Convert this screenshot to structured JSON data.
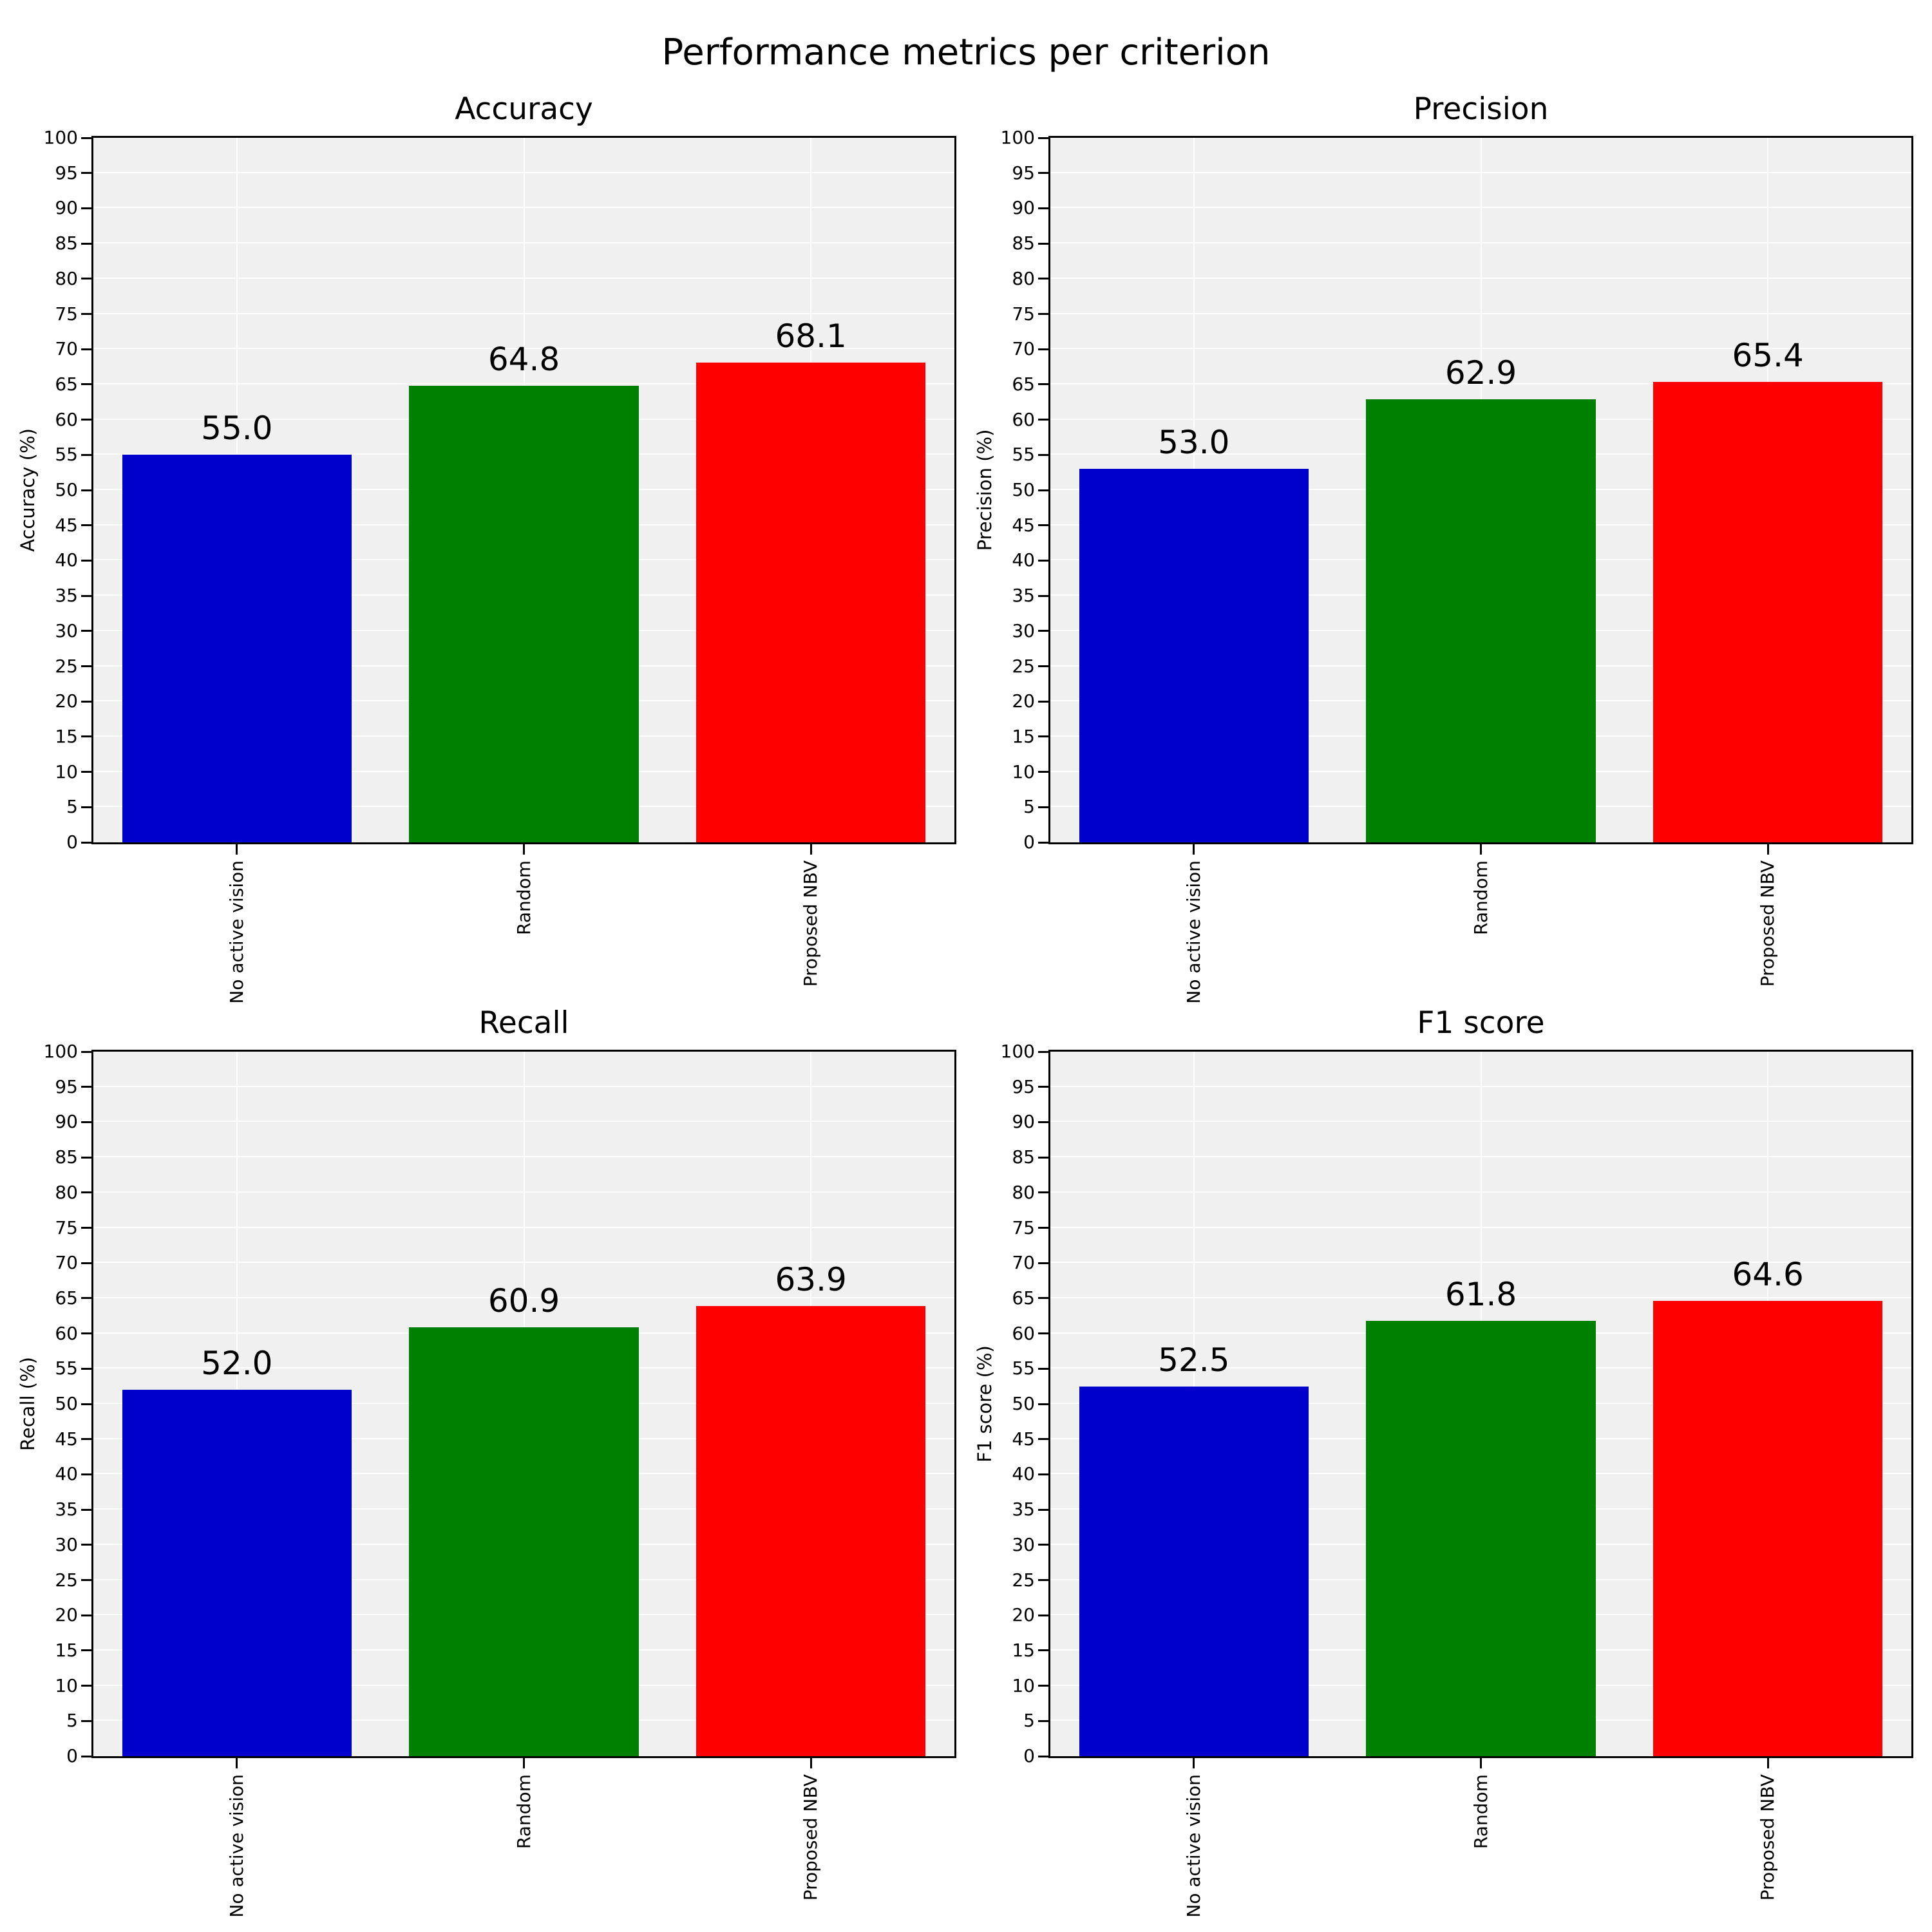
{
  "figure": {
    "suptitle": "Performance metrics per criterion",
    "background": "#ffffff",
    "plot_background": "#f0f0f0",
    "grid_color": "#ffffff",
    "spine_color": "#000000"
  },
  "chart_data": [
    {
      "type": "bar",
      "title": "Accuracy",
      "ylabel": "Accuracy (%)",
      "categories": [
        "No active vision",
        "Random",
        "Proposed NBV"
      ],
      "values": [
        55.0,
        64.8,
        68.1
      ],
      "value_labels": [
        "55.0",
        "64.8",
        "68.1"
      ],
      "bar_colors": [
        "#0000cd",
        "#008000",
        "#ff0000"
      ],
      "ylim": [
        0,
        100
      ],
      "ytick_step": 5,
      "grid": true,
      "legend": "none"
    },
    {
      "type": "bar",
      "title": "Precision",
      "ylabel": "Precision (%)",
      "categories": [
        "No active vision",
        "Random",
        "Proposed NBV"
      ],
      "values": [
        53.0,
        62.9,
        65.4
      ],
      "value_labels": [
        "53.0",
        "62.9",
        "65.4"
      ],
      "bar_colors": [
        "#0000cd",
        "#008000",
        "#ff0000"
      ],
      "ylim": [
        0,
        100
      ],
      "ytick_step": 5,
      "grid": true,
      "legend": "none"
    },
    {
      "type": "bar",
      "title": "Recall",
      "ylabel": "Recall (%)",
      "categories": [
        "No active vision",
        "Random",
        "Proposed NBV"
      ],
      "values": [
        52.0,
        60.9,
        63.9
      ],
      "value_labels": [
        "52.0",
        "60.9",
        "63.9"
      ],
      "bar_colors": [
        "#0000cd",
        "#008000",
        "#ff0000"
      ],
      "ylim": [
        0,
        100
      ],
      "ytick_step": 5,
      "grid": true,
      "legend": "none"
    },
    {
      "type": "bar",
      "title": "F1 score",
      "ylabel": "F1 score (%)",
      "categories": [
        "No active vision",
        "Random",
        "Proposed NBV"
      ],
      "values": [
        52.5,
        61.8,
        64.6
      ],
      "value_labels": [
        "52.5",
        "61.8",
        "64.6"
      ],
      "bar_colors": [
        "#0000cd",
        "#008000",
        "#ff0000"
      ],
      "ylim": [
        0,
        100
      ],
      "ytick_step": 5,
      "grid": true,
      "legend": "none"
    }
  ]
}
